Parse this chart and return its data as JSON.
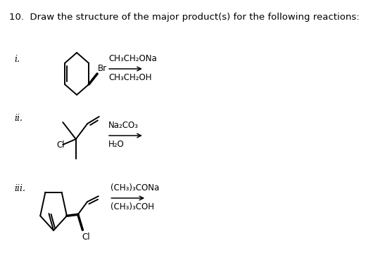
{
  "title": "10.  Draw the structure of the major product(s) for the following reactions:",
  "title_fontsize": 9.5,
  "background": "#ffffff",
  "reagents_i_line1": "CH₃CH₂ONa",
  "reagents_i_line2": "CH₃CH₂OH",
  "reagents_ii_line1": "Na₂CO₃",
  "reagents_ii_line2": "H₂O",
  "reagents_iii_line1": "(CH₃)₃CONa",
  "reagents_iii_line2": "(CH₃)₃COH",
  "text_color": "#000000",
  "line_color": "#000000"
}
